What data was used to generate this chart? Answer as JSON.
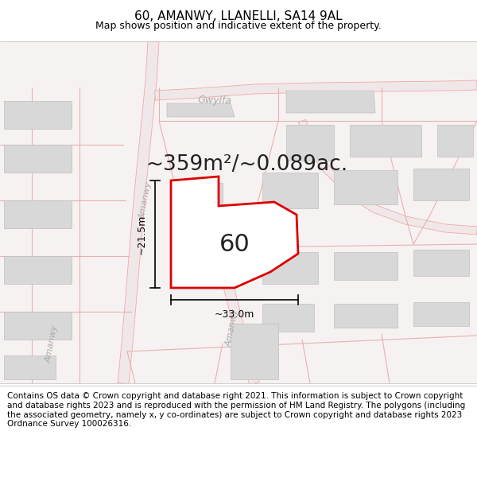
{
  "title": "60, AMANWY, LLANELLI, SA14 9AL",
  "subtitle": "Map shows position and indicative extent of the property.",
  "footer": "Contains OS data © Crown copyright and database right 2021. This information is subject to Crown copyright and database rights 2023 and is reproduced with the permission of HM Land Registry. The polygons (including the associated geometry, namely x, y co-ordinates) are subject to Crown copyright and database rights 2023 Ordnance Survey 100026316.",
  "area_text": "~359m²/~0.089ac.",
  "label_60": "60",
  "dim_width": "~33.0m",
  "dim_height": "~21.5m",
  "map_bg": "#f5f0f0",
  "road_line_color": "#f0a8a8",
  "road_fill_color": "#f8e8e8",
  "building_fill": "#d8d8d8",
  "building_stroke": "#c0c0c0",
  "parcel_line_color": "#e8b0b0",
  "highlight_color": "#dd0000",
  "dim_line_color": "#000000",
  "title_fontsize": 11,
  "subtitle_fontsize": 9,
  "footer_fontsize": 7.5,
  "area_fontsize": 19,
  "label_fontsize": 22,
  "dim_fontsize": 9,
  "road_label_color": "#aaaaaa",
  "road_label_size": 8
}
